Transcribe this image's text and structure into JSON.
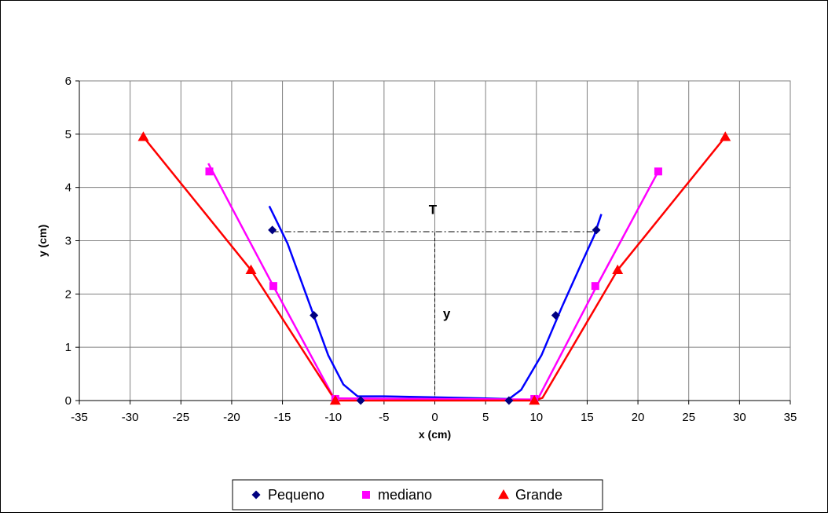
{
  "chart_data": {
    "type": "scatter",
    "xlabel": "x (cm)",
    "ylabel": "y (cm)",
    "xlim": [
      -35,
      35
    ],
    "ylim": [
      0,
      6
    ],
    "x_ticks": [
      -35,
      -30,
      -25,
      -20,
      -15,
      -10,
      -5,
      0,
      5,
      10,
      15,
      20,
      25,
      30,
      35
    ],
    "y_ticks": [
      0,
      1,
      2,
      3,
      4,
      5,
      6
    ],
    "grid": true,
    "legend_position": "bottom",
    "annotations": {
      "top_width": "T",
      "depth": "y"
    },
    "width_line": {
      "x": [
        -16,
        16
      ],
      "y": 3.17
    },
    "depth_line": {
      "x": 0,
      "y": [
        0,
        3.17
      ]
    },
    "series": [
      {
        "name": "Pequeno",
        "color": "#000080",
        "marker": "diamond",
        "points": [
          [
            -16,
            3.2
          ],
          [
            -11.9,
            1.6
          ],
          [
            -7.3,
            0
          ],
          [
            7.3,
            0
          ],
          [
            11.9,
            1.6
          ],
          [
            15.9,
            3.2
          ]
        ],
        "fit_color": "#0000FF",
        "fit": [
          [
            -16.3,
            3.65
          ],
          [
            -14.5,
            2.95
          ],
          [
            -12.5,
            1.9
          ],
          [
            -10.5,
            0.85
          ],
          [
            -9.0,
            0.3
          ],
          [
            -7.6,
            0.08
          ],
          [
            -5,
            0.08
          ],
          [
            0,
            0.06
          ],
          [
            5,
            0.04
          ],
          [
            7.3,
            0.03
          ],
          [
            8.5,
            0.2
          ],
          [
            10.5,
            0.85
          ],
          [
            12.5,
            1.75
          ],
          [
            14.5,
            2.6
          ],
          [
            15.7,
            3.1
          ],
          [
            16.4,
            3.5
          ]
        ]
      },
      {
        "name": "mediano",
        "color": "#FF00FF",
        "marker": "square",
        "points": [
          [
            -22.2,
            4.3
          ],
          [
            -15.9,
            2.15
          ],
          [
            -9.8,
            0.03
          ],
          [
            9.8,
            0.03
          ],
          [
            15.8,
            2.15
          ],
          [
            22,
            4.3
          ]
        ],
        "fit_color": "#FF00FF",
        "fit": [
          [
            -22.3,
            4.45
          ],
          [
            -15.9,
            2.15
          ],
          [
            -10,
            0.07
          ],
          [
            -9.3,
            0.04
          ],
          [
            9.5,
            0.02
          ],
          [
            10.2,
            0.05
          ],
          [
            15.8,
            2.1
          ],
          [
            22,
            4.3
          ]
        ]
      },
      {
        "name": "Grande",
        "color": "#FF0000",
        "marker": "triangle",
        "points": [
          [
            -28.7,
            4.95
          ],
          [
            -18.1,
            2.45
          ],
          [
            -9.8,
            0
          ],
          [
            9.8,
            0
          ],
          [
            18,
            2.45
          ],
          [
            28.6,
            4.95
          ]
        ],
        "fit_color": "#FF0000",
        "fit": [
          [
            -28.7,
            4.95
          ],
          [
            -18.1,
            2.45
          ],
          [
            -9.8,
            0.0
          ],
          [
            9.8,
            0.0
          ],
          [
            10.6,
            0.05
          ],
          [
            18,
            2.45
          ],
          [
            28.6,
            4.95
          ]
        ]
      }
    ]
  }
}
